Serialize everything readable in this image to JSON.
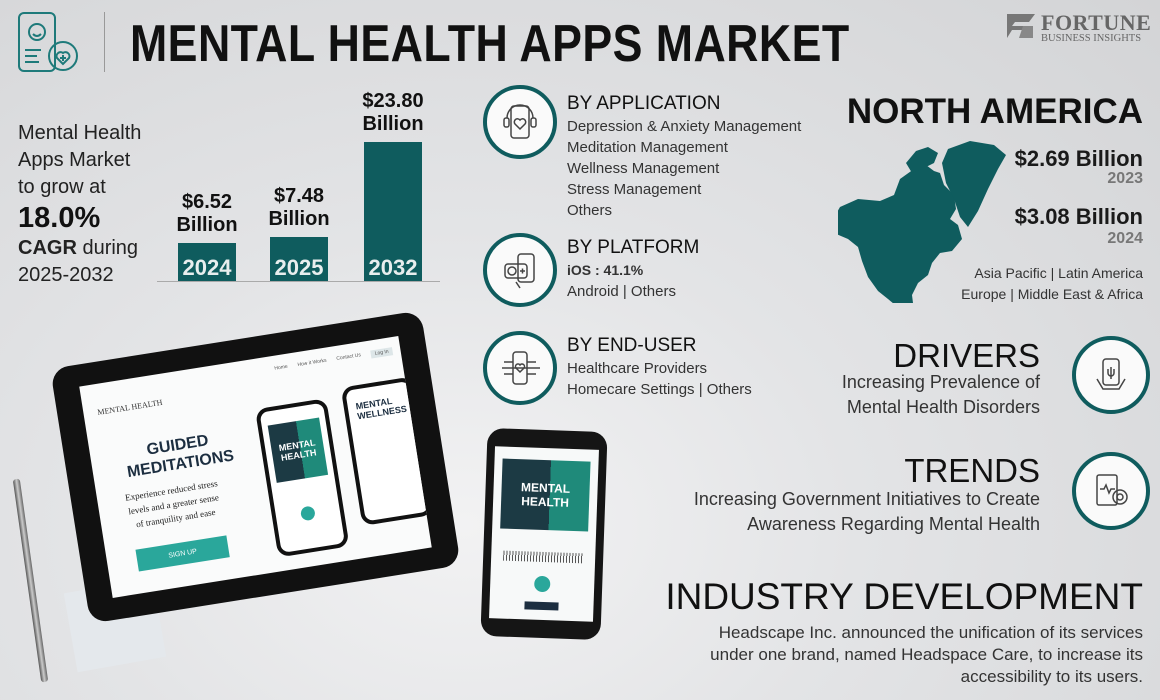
{
  "header": {
    "title": "MENTAL HEALTH APPS MARKET",
    "logo_main": "FORTUNE",
    "logo_sub": "BUSINESS INSIGHTS"
  },
  "summary": {
    "line1": "Mental Health",
    "line2": "Apps Market",
    "line3": "to grow at",
    "cagr": "18.0%",
    "cagr_label": "CAGR",
    "during": " during",
    "period": "2025-2032"
  },
  "chart_data": {
    "type": "bar",
    "categories": [
      "2024",
      "2025",
      "2032"
    ],
    "values": [
      6.52,
      7.48,
      23.8
    ],
    "labels": [
      "$6.52",
      "$7.48",
      "$23.80"
    ],
    "unit": "Billion",
    "color": "#0f5c5e"
  },
  "segments": {
    "application": {
      "title": "BY APPLICATION",
      "items": [
        "Depression & Anxiety Management",
        "Meditation Management",
        "Wellness Management",
        "Stress Management",
        "Others"
      ]
    },
    "platform": {
      "title": "BY PLATFORM",
      "highlight": "iOS : 41.1%",
      "others": "Android  |  Others"
    },
    "end_user": {
      "title": "BY END-USER",
      "items": [
        "Healthcare Providers",
        "Homecare Settings  |  Others"
      ]
    }
  },
  "region": {
    "title": "NORTH AMERICA",
    "value1": "$2.69 Billion",
    "year1": "2023",
    "value2": "$3.08 Billion",
    "year2": "2024",
    "others1": "Asia Pacific  |  Latin America",
    "others2": "Europe  |  Middle East & Africa"
  },
  "drivers": {
    "title": "DRIVERS",
    "line1": "Increasing Prevalence of",
    "line2": "Mental Health Disorders"
  },
  "trends": {
    "title": "TRENDS",
    "line1": "Increasing Government Initiatives to Create",
    "line2": "Awareness Regarding Mental Health"
  },
  "industry": {
    "title": "INDUSTRY DEVELOPMENT",
    "line1": "Headscape Inc. announced the unification of its services",
    "line2": "under one brand, named Headspace Care, to increase its",
    "line3": "accessibility to its users."
  },
  "tablet": {
    "brand": "MENTAL HEALTH",
    "nav": [
      "Home",
      "How it Works",
      "Contact Us",
      "Log In"
    ],
    "heading1": "GUIDED",
    "heading2": "MEDITATIONS",
    "body1": "Experience reduced stress",
    "body2": "levels and a greater sense",
    "body3": "of tranquility and ease",
    "cta": "SIGN UP",
    "card1": "MENTAL HEALTH",
    "card2": "MENTAL WELLNESS"
  },
  "phone": {
    "card": "MENTAL HEALTH"
  },
  "colors": {
    "accent": "#0f5c5e",
    "secondary": "#2aa79b"
  }
}
